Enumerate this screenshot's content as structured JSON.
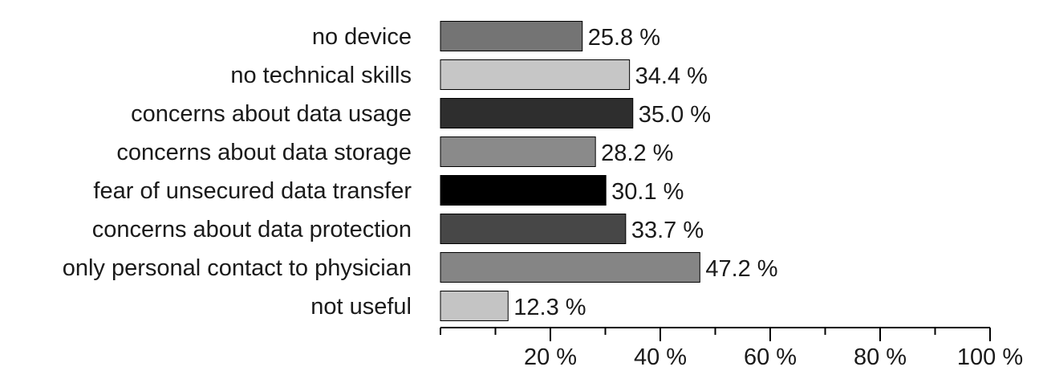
{
  "chart_data": {
    "type": "bar",
    "orientation": "horizontal",
    "categories": [
      "no device",
      "no technical skills",
      "concerns about data usage",
      "concerns about data storage",
      "fear of unsecured data transfer",
      "concerns about data protection",
      "only personal contact to physician",
      "not useful"
    ],
    "values": [
      25.8,
      34.4,
      35.0,
      28.2,
      30.1,
      33.7,
      47.2,
      12.3
    ],
    "value_labels": [
      "25.8 %",
      "34.4 %",
      "35.0 %",
      "28.2 %",
      "30.1 %",
      "33.7 %",
      "47.2 %",
      "12.3 %"
    ],
    "bar_colors": [
      "#747474",
      "#c6c6c6",
      "#2e2e2e",
      "#8a8a8a",
      "#000000",
      "#474747",
      "#858585",
      "#c4c4c4"
    ],
    "xlim": [
      0,
      100
    ],
    "x_ticks": [
      20,
      40,
      60,
      80,
      100
    ],
    "x_tick_labels": [
      "20 %",
      "40 %",
      "60 %",
      "80 %",
      "100 %"
    ],
    "x_minor_ticks": [
      0,
      10,
      30,
      50,
      70,
      90
    ],
    "grid": false,
    "title": "",
    "xlabel": "",
    "ylabel": ""
  }
}
